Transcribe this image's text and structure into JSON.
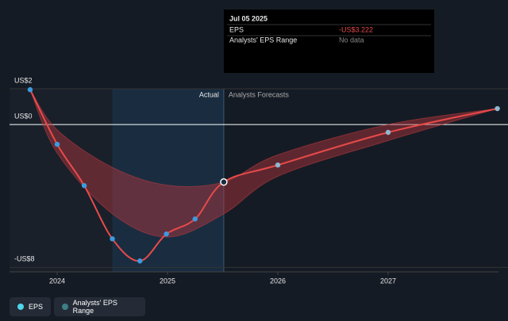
{
  "tooltip": {
    "date": "Jul 05 2025",
    "rows": [
      {
        "label": "EPS",
        "value": "-US$3.222"
      },
      {
        "label": "Analysts' EPS Range",
        "value": "No data"
      }
    ]
  },
  "chart_data": {
    "type": "line",
    "xlim": [
      2023.568,
      2028.0
    ],
    "xticks": [
      2024,
      2025,
      2026,
      2027
    ],
    "ylim": [
      -8.25,
      2
    ],
    "yticks": [
      {
        "value": 2,
        "label": "US$2"
      },
      {
        "value": 0,
        "label": "US$0"
      },
      {
        "value": -8,
        "label": "-US$8"
      }
    ],
    "actual_label": "Actual",
    "forecast_label": "Analysts Forecasts",
    "forecast_start": 2025.51,
    "series": [
      {
        "name": "EPS",
        "color": "#e84a4a",
        "x": [
          2023.755,
          2024.0,
          2024.245,
          2024.5,
          2024.75,
          2024.99,
          2025.25,
          2025.51,
          2026.0,
          2027.0,
          2027.99
        ],
        "values": [
          1.95,
          -1.11,
          -3.42,
          -6.4,
          -7.64,
          -6.13,
          -5.29,
          -3.222,
          -2.27,
          -0.44,
          0.89
        ]
      }
    ],
    "range": {
      "name": "Analysts' EPS Range",
      "color": "#b8383f",
      "x": [
        2023.755,
        2024.0,
        2024.5,
        2025.0,
        2025.51,
        2026.0,
        2027.0,
        2027.99
      ],
      "low": [
        1.95,
        -1.6,
        -5.0,
        -6.3,
        -5.0,
        -2.9,
        -0.9,
        0.89
      ],
      "high": [
        1.95,
        -0.3,
        -2.4,
        -3.4,
        -3.222,
        -1.7,
        0.0,
        0.89
      ]
    }
  }
}
